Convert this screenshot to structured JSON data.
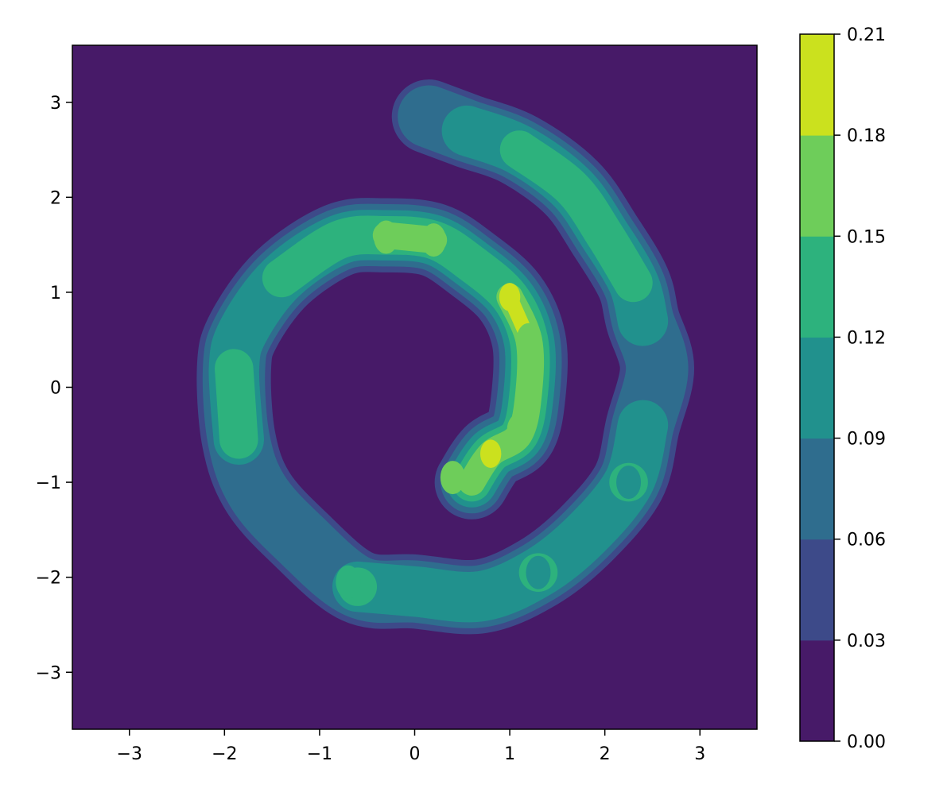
{
  "chart_data": {
    "type": "contourf",
    "title": "",
    "xlabel": "",
    "ylabel": "",
    "xlim": [
      -3.6,
      3.6
    ],
    "ylim": [
      -3.6,
      3.6
    ],
    "grid": false,
    "x_ticks": [
      -3,
      -2,
      -1,
      0,
      1,
      2,
      3
    ],
    "x_tick_labels": [
      "−3",
      "−2",
      "−1",
      "0",
      "1",
      "2",
      "3"
    ],
    "y_ticks": [
      3,
      2,
      1,
      0,
      -1,
      -2,
      -3
    ],
    "y_tick_labels": [
      "3",
      "2",
      "1",
      "0",
      "−1",
      "−2",
      "−3"
    ],
    "colorbar": {
      "levels": [
        0.0,
        0.03,
        0.06,
        0.09,
        0.12,
        0.15,
        0.18,
        0.21
      ],
      "tick_labels": [
        "0.00",
        "0.03",
        "0.06",
        "0.09",
        "0.12",
        "0.15",
        "0.18",
        "0.21"
      ],
      "colors": [
        "#471a68",
        "#3d4a89",
        "#2f6d8e",
        "#21918d",
        "#2db27d",
        "#6ecd5a",
        "#cbe11e"
      ]
    },
    "density_description": "two-arm spiral density centered near origin; inner arm from (0,-0.9) curving up through (1,0.9) and ending near (0.1,1.5); outer arm continuing around left through (-1.9,0.2), bottom near (0,-2.2), right side near (2.3,-0.9) and top ending near (0.1,2.9)",
    "spiral_points": [
      {
        "x": 0.6,
        "y": -1.0,
        "density": 0.17
      },
      {
        "x": 0.8,
        "y": -0.7,
        "density": 0.19
      },
      {
        "x": 1.1,
        "y": -0.5,
        "density": 0.17
      },
      {
        "x": 1.2,
        "y": -0.05,
        "density": 0.16
      },
      {
        "x": 1.2,
        "y": 0.5,
        "density": 0.19
      },
      {
        "x": 1.0,
        "y": 0.95,
        "density": 0.21
      },
      {
        "x": 0.6,
        "y": 1.3,
        "density": 0.13
      },
      {
        "x": 0.2,
        "y": 1.55,
        "density": 0.16
      },
      {
        "x": -0.3,
        "y": 1.6,
        "density": 0.17
      },
      {
        "x": -0.8,
        "y": 1.55,
        "density": 0.13
      },
      {
        "x": -1.4,
        "y": 1.15,
        "density": 0.14
      },
      {
        "x": -1.8,
        "y": 0.6,
        "density": 0.11
      },
      {
        "x": -1.9,
        "y": 0.2,
        "density": 0.14
      },
      {
        "x": -1.85,
        "y": -0.55,
        "density": 0.12
      },
      {
        "x": -1.65,
        "y": -1.1,
        "density": 0.08
      },
      {
        "x": -1.2,
        "y": -1.6,
        "density": 0.08
      },
      {
        "x": -0.6,
        "y": -2.1,
        "density": 0.13
      },
      {
        "x": 0.0,
        "y": -2.15,
        "density": 0.1
      },
      {
        "x": 0.7,
        "y": -2.2,
        "density": 0.11
      },
      {
        "x": 1.3,
        "y": -1.95,
        "density": 0.12
      },
      {
        "x": 1.8,
        "y": -1.55,
        "density": 0.09
      },
      {
        "x": 2.25,
        "y": -1.0,
        "density": 0.13
      },
      {
        "x": 2.4,
        "y": -0.4,
        "density": 0.09
      },
      {
        "x": 2.55,
        "y": 0.2,
        "density": 0.08
      },
      {
        "x": 2.4,
        "y": 0.7,
        "density": 0.1
      },
      {
        "x": 2.3,
        "y": 1.1,
        "density": 0.13
      },
      {
        "x": 2.0,
        "y": 1.6,
        "density": 0.12
      },
      {
        "x": 1.65,
        "y": 2.1,
        "density": 0.13
      },
      {
        "x": 1.1,
        "y": 2.5,
        "density": 0.12
      },
      {
        "x": 0.55,
        "y": 2.7,
        "density": 0.09
      },
      {
        "x": 0.15,
        "y": 2.85,
        "density": 0.06
      }
    ],
    "highlights": [
      {
        "x": 1.0,
        "y": 0.95,
        "level": 0.18
      },
      {
        "x": 1.2,
        "y": 0.5,
        "level": 0.15
      },
      {
        "x": 0.8,
        "y": -0.7,
        "level": 0.18
      },
      {
        "x": 0.4,
        "y": -0.95,
        "level": 0.15
      },
      {
        "x": 1.1,
        "y": -0.45,
        "level": 0.15
      },
      {
        "x": -0.3,
        "y": 1.58,
        "level": 0.15
      },
      {
        "x": 0.2,
        "y": 1.55,
        "level": 0.15
      },
      {
        "x": -0.7,
        "y": -2.05,
        "level": 0.12
      },
      {
        "x": 2.25,
        "y": -1.0,
        "level": 0.09
      },
      {
        "x": 1.3,
        "y": -1.95,
        "level": 0.09
      }
    ]
  }
}
